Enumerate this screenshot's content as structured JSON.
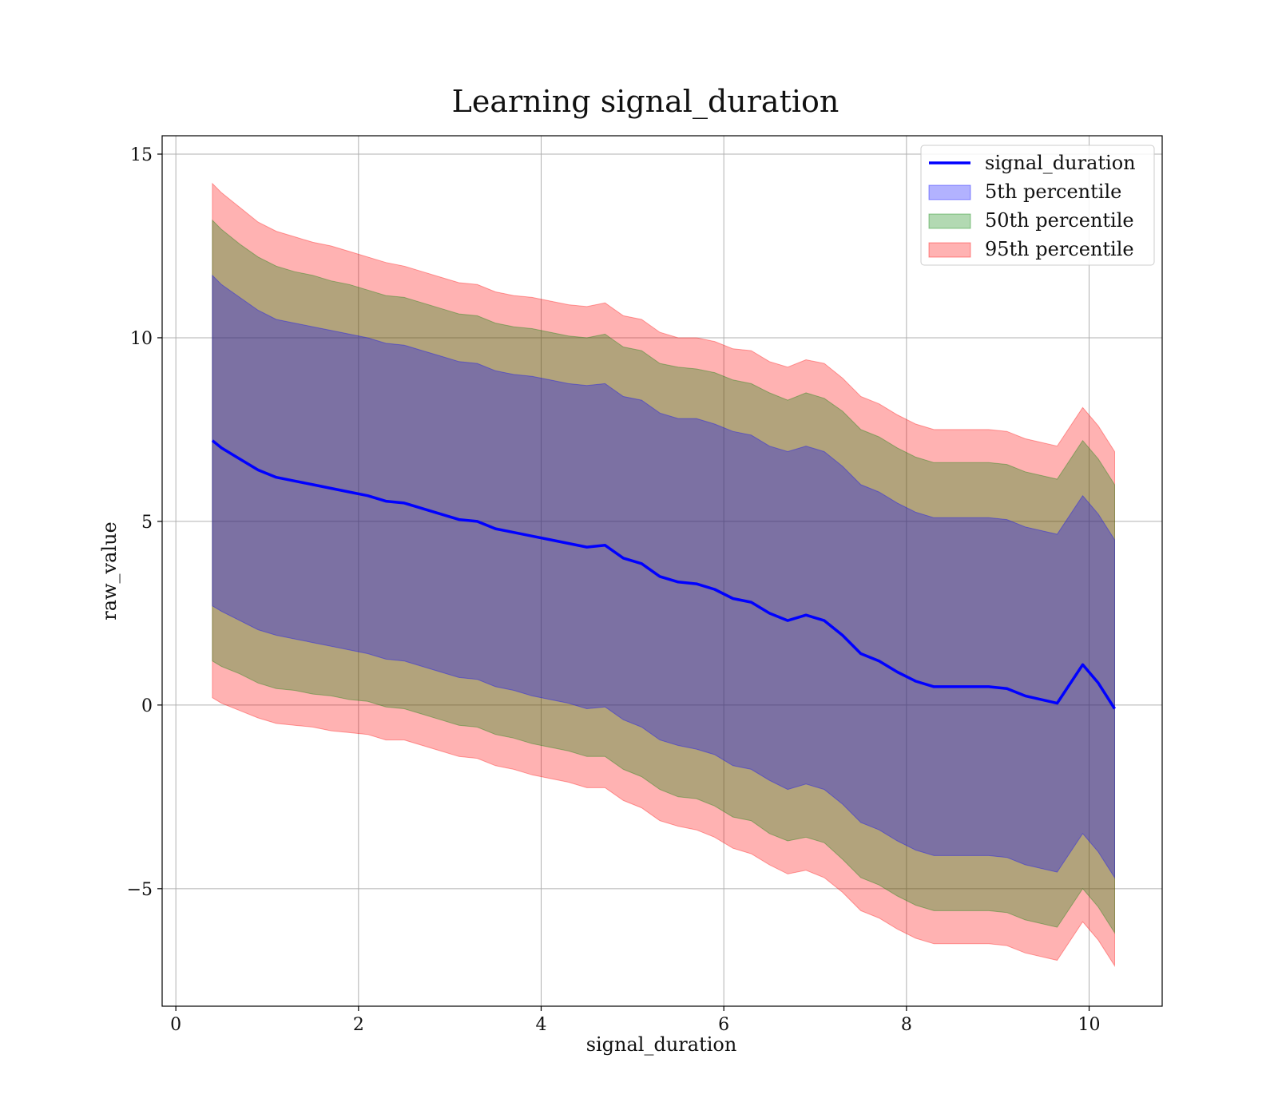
{
  "chart_data": {
    "type": "area",
    "title": "Learning signal_duration",
    "xlabel": "signal_duration",
    "ylabel": "raw_value",
    "xlim": [
      -0.15,
      10.8
    ],
    "ylim": [
      -8.2,
      15.5
    ],
    "xticks": [
      0,
      2,
      4,
      6,
      8,
      10
    ],
    "yticks": [
      -5,
      0,
      5,
      10,
      15
    ],
    "xtick_labels": [
      "0",
      "2",
      "4",
      "6",
      "8",
      "10"
    ],
    "ytick_labels": [
      "−5",
      "0",
      "5",
      "10",
      "15"
    ],
    "grid": true,
    "legend_position": "top-right",
    "line": {
      "name": "signal_duration",
      "color": "#0000ff",
      "x": [
        0.4,
        0.5,
        0.7,
        0.9,
        1.1,
        1.3,
        1.5,
        1.7,
        1.9,
        2.1,
        2.3,
        2.5,
        2.7,
        2.9,
        3.1,
        3.3,
        3.5,
        3.7,
        3.9,
        4.1,
        4.3,
        4.5,
        4.7,
        4.9,
        5.1,
        5.3,
        5.5,
        5.7,
        5.9,
        6.1,
        6.3,
        6.5,
        6.7,
        6.9,
        7.1,
        7.3,
        7.5,
        7.7,
        7.9,
        8.1,
        8.3,
        8.5,
        8.7,
        8.9,
        9.1,
        9.3,
        9.65,
        9.93,
        10.1,
        10.28
      ],
      "y": [
        7.2,
        7.0,
        6.7,
        6.4,
        6.2,
        6.1,
        6.0,
        5.9,
        5.8,
        5.7,
        5.55,
        5.5,
        5.35,
        5.2,
        5.05,
        5.0,
        4.8,
        4.7,
        4.6,
        4.5,
        4.4,
        4.3,
        4.35,
        4.0,
        3.85,
        3.5,
        3.35,
        3.3,
        3.15,
        2.9,
        2.8,
        2.5,
        2.3,
        2.45,
        2.3,
        1.9,
        1.4,
        1.2,
        0.9,
        0.65,
        0.5,
        0.5,
        0.5,
        0.5,
        0.45,
        0.25,
        0.05,
        1.1,
        0.6,
        -0.1
      ]
    },
    "bands": [
      {
        "name": "95th percentile",
        "color": "#ff0000",
        "half_width": [
          7.0,
          6.95,
          6.85,
          6.75,
          6.7,
          6.65,
          6.6,
          6.6,
          6.55,
          6.5,
          6.5,
          6.45,
          6.45,
          6.45,
          6.45,
          6.45,
          6.45,
          6.45,
          6.5,
          6.5,
          6.5,
          6.55,
          6.6,
          6.6,
          6.65,
          6.65,
          6.65,
          6.7,
          6.75,
          6.8,
          6.85,
          6.85,
          6.9,
          6.95,
          7.0,
          7.0,
          7.0,
          7.0,
          7.0,
          7.0,
          7.0,
          7.0,
          7.0,
          7.0,
          7.0,
          7.0,
          7.0,
          7.0,
          7.0,
          7.0
        ]
      },
      {
        "name": "50th percentile",
        "color": "#008000",
        "half_width": [
          6.0,
          5.95,
          5.85,
          5.8,
          5.75,
          5.7,
          5.7,
          5.65,
          5.65,
          5.6,
          5.6,
          5.6,
          5.6,
          5.6,
          5.6,
          5.6,
          5.6,
          5.6,
          5.65,
          5.65,
          5.65,
          5.7,
          5.75,
          5.75,
          5.8,
          5.8,
          5.85,
          5.85,
          5.9,
          5.95,
          5.95,
          6.0,
          6.0,
          6.05,
          6.05,
          6.1,
          6.1,
          6.1,
          6.1,
          6.1,
          6.1,
          6.1,
          6.1,
          6.1,
          6.1,
          6.1,
          6.1,
          6.1,
          6.1,
          6.1
        ]
      },
      {
        "name": "5th percentile",
        "color": "#0000ff",
        "half_width": [
          4.5,
          4.45,
          4.4,
          4.35,
          4.3,
          4.3,
          4.3,
          4.3,
          4.3,
          4.3,
          4.3,
          4.3,
          4.3,
          4.3,
          4.3,
          4.3,
          4.3,
          4.3,
          4.35,
          4.35,
          4.35,
          4.4,
          4.4,
          4.4,
          4.45,
          4.45,
          4.45,
          4.5,
          4.5,
          4.55,
          4.55,
          4.55,
          4.6,
          4.6,
          4.6,
          4.6,
          4.6,
          4.6,
          4.6,
          4.6,
          4.6,
          4.6,
          4.6,
          4.6,
          4.6,
          4.6,
          4.6,
          4.6,
          4.6,
          4.6
        ]
      }
    ],
    "legend": [
      {
        "label": "signal_duration",
        "kind": "line",
        "color": "#0000ff"
      },
      {
        "label": "5th percentile",
        "kind": "patch",
        "color": "#0000ff"
      },
      {
        "label": "50th percentile",
        "kind": "patch",
        "color": "#008000"
      },
      {
        "label": "95th percentile",
        "kind": "patch",
        "color": "#ff0000"
      }
    ]
  }
}
